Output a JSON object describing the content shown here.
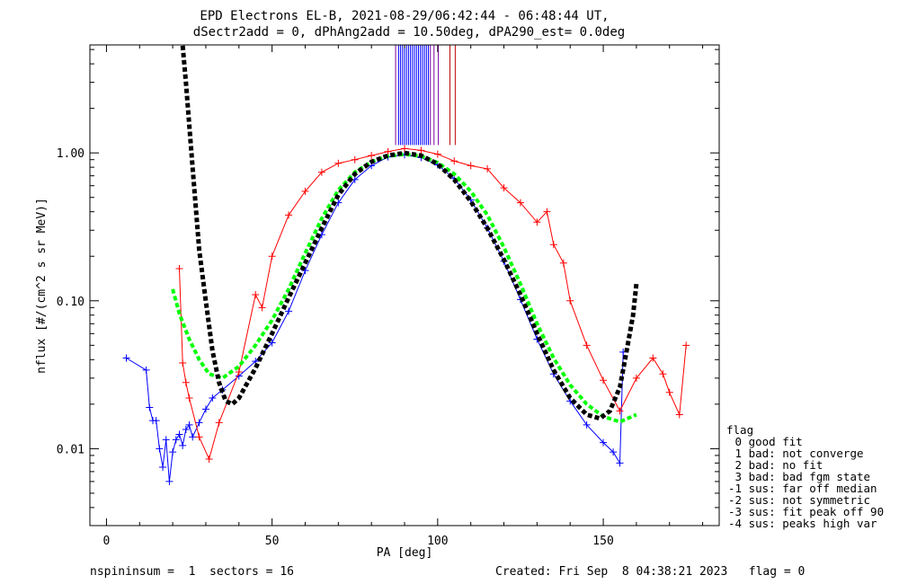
{
  "header": {
    "title_line1": "EPD Electrons EL-B, 2021-08-29/06:42:44 - 06:48:44 UT,",
    "title_line2": "dSectr2add = 0, dPhAng2add = 10.50deg, dPA290_est=   0.0deg"
  },
  "legend": {
    "heading": "flag",
    "items": [
      " 0 good fit",
      " 1 bad: not converge",
      " 2 bad: no fit",
      " 3 bad: bad fgm state",
      "-1 sus: far off median",
      "-2 sus: not symmetric",
      "-3 sus: fit peak off 90",
      "-4 sus: peaks high var"
    ]
  },
  "footer": {
    "left": "nspininsum =  1  sectors = 16",
    "right": "Created: Fri Sep  8 04:38:21 2023   flag = 0"
  },
  "colors": {
    "blue": "#0000ff",
    "red": "#ff0000",
    "green": "#00ff00",
    "black": "#000000",
    "purple": "#8000a0",
    "darkred": "#c00000"
  },
  "chart_data": {
    "type": "line",
    "xlabel": "PA [deg]",
    "ylabel": "nflux [#/(cm^2 s sr MeV)]",
    "xlim": [
      -5,
      185
    ],
    "ylim_log10": [
      -2.52,
      0.73
    ],
    "log_y": true,
    "x_ticks": [
      {
        "value": 0,
        "label": "0"
      },
      {
        "value": 50,
        "label": "50"
      },
      {
        "value": 100,
        "label": "100"
      },
      {
        "value": 150,
        "label": "150"
      }
    ],
    "y_ticks": [
      {
        "value": 0.01,
        "label": "0.01"
      },
      {
        "value": 0.1,
        "label": "0.10"
      },
      {
        "value": 1.0,
        "label": "1.00"
      }
    ],
    "series": [
      {
        "color": "blue",
        "style": "line+cross",
        "points": [
          [
            6,
            0.041
          ],
          [
            12,
            0.034
          ],
          [
            13,
            0.019
          ],
          [
            14,
            0.0155
          ],
          [
            15,
            0.0155
          ],
          [
            16,
            0.01
          ],
          [
            17,
            0.0075
          ],
          [
            18,
            0.0115
          ],
          [
            19,
            0.006
          ],
          [
            20,
            0.0095
          ],
          [
            21,
            0.0115
          ],
          [
            22,
            0.0125
          ],
          [
            23,
            0.0105
          ],
          [
            24,
            0.0135
          ],
          [
            25,
            0.0145
          ],
          [
            26,
            0.012
          ],
          [
            28,
            0.015
          ],
          [
            30,
            0.0185
          ],
          [
            32,
            0.022
          ],
          [
            35,
            0.025
          ],
          [
            40,
            0.031
          ],
          [
            45,
            0.039
          ],
          [
            50,
            0.052
          ],
          [
            55,
            0.085
          ],
          [
            60,
            0.16
          ],
          [
            65,
            0.28
          ],
          [
            70,
            0.46
          ],
          [
            75,
            0.66
          ],
          [
            80,
            0.82
          ],
          [
            85,
            0.94
          ],
          [
            90,
            0.97
          ],
          [
            95,
            0.93
          ],
          [
            100,
            0.83
          ],
          [
            105,
            0.67
          ],
          [
            110,
            0.48
          ],
          [
            115,
            0.31
          ],
          [
            120,
            0.185
          ],
          [
            125,
            0.102
          ],
          [
            130,
            0.055
          ],
          [
            135,
            0.032
          ],
          [
            140,
            0.021
          ],
          [
            145,
            0.0145
          ],
          [
            150,
            0.011
          ],
          [
            153,
            0.0095
          ],
          [
            155,
            0.008
          ],
          [
            156,
            0.045
          ]
        ]
      },
      {
        "color": "red",
        "style": "line+cross",
        "points": [
          [
            22,
            0.165
          ],
          [
            23,
            0.038
          ],
          [
            24,
            0.028
          ],
          [
            25,
            0.022
          ],
          [
            28,
            0.012
          ],
          [
            31,
            0.0085
          ],
          [
            34,
            0.015
          ],
          [
            40,
            0.033
          ],
          [
            45,
            0.11
          ],
          [
            47,
            0.09
          ],
          [
            50,
            0.2
          ],
          [
            55,
            0.38
          ],
          [
            60,
            0.55
          ],
          [
            65,
            0.74
          ],
          [
            70,
            0.85
          ],
          [
            75,
            0.9
          ],
          [
            80,
            0.96
          ],
          [
            85,
            1.02
          ],
          [
            90,
            1.07
          ],
          [
            95,
            1.04
          ],
          [
            100,
            0.98
          ],
          [
            105,
            0.88
          ],
          [
            110,
            0.82
          ],
          [
            115,
            0.78
          ],
          [
            120,
            0.58
          ],
          [
            125,
            0.46
          ],
          [
            130,
            0.34
          ],
          [
            133,
            0.4
          ],
          [
            135,
            0.24
          ],
          [
            138,
            0.18
          ],
          [
            140,
            0.1
          ],
          [
            145,
            0.05
          ],
          [
            150,
            0.029
          ],
          [
            155,
            0.018
          ],
          [
            160,
            0.03
          ],
          [
            165,
            0.041
          ],
          [
            168,
            0.032
          ],
          [
            170,
            0.024
          ],
          [
            173,
            0.017
          ],
          [
            175,
            0.05
          ]
        ]
      },
      {
        "color": "green",
        "style": "dashed",
        "points": [
          [
            20,
            0.12
          ],
          [
            22,
            0.082
          ],
          [
            25,
            0.055
          ],
          [
            28,
            0.04
          ],
          [
            31,
            0.032
          ],
          [
            35,
            0.03
          ],
          [
            40,
            0.036
          ],
          [
            45,
            0.05
          ],
          [
            50,
            0.074
          ],
          [
            55,
            0.12
          ],
          [
            60,
            0.21
          ],
          [
            65,
            0.36
          ],
          [
            70,
            0.56
          ],
          [
            75,
            0.74
          ],
          [
            80,
            0.87
          ],
          [
            85,
            0.95
          ],
          [
            90,
            0.98
          ],
          [
            95,
            0.95
          ],
          [
            100,
            0.86
          ],
          [
            105,
            0.72
          ],
          [
            110,
            0.55
          ],
          [
            115,
            0.38
          ],
          [
            120,
            0.23
          ],
          [
            125,
            0.13
          ],
          [
            130,
            0.07
          ],
          [
            135,
            0.041
          ],
          [
            140,
            0.027
          ],
          [
            145,
            0.02
          ],
          [
            150,
            0.0165
          ],
          [
            155,
            0.0152
          ],
          [
            160,
            0.017
          ]
        ]
      },
      {
        "color": "black",
        "style": "dashed-thick",
        "points": [
          [
            23,
            5.3
          ],
          [
            24,
            3.0
          ],
          [
            25,
            1.55
          ],
          [
            26,
            0.8
          ],
          [
            27,
            0.42
          ],
          [
            28,
            0.22
          ],
          [
            30,
            0.1
          ],
          [
            32,
            0.046
          ],
          [
            34,
            0.028
          ],
          [
            36,
            0.021
          ],
          [
            38,
            0.02
          ],
          [
            40,
            0.022
          ],
          [
            45,
            0.035
          ],
          [
            50,
            0.06
          ],
          [
            55,
            0.105
          ],
          [
            60,
            0.18
          ],
          [
            65,
            0.31
          ],
          [
            70,
            0.52
          ],
          [
            75,
            0.72
          ],
          [
            80,
            0.87
          ],
          [
            85,
            0.96
          ],
          [
            90,
            1.0
          ],
          [
            95,
            0.96
          ],
          [
            100,
            0.84
          ],
          [
            105,
            0.66
          ],
          [
            110,
            0.47
          ],
          [
            115,
            0.31
          ],
          [
            120,
            0.19
          ],
          [
            125,
            0.11
          ],
          [
            130,
            0.06
          ],
          [
            135,
            0.034
          ],
          [
            140,
            0.022
          ],
          [
            145,
            0.017
          ],
          [
            149,
            0.016
          ],
          [
            152,
            0.018
          ],
          [
            155,
            0.026
          ],
          [
            157,
            0.045
          ],
          [
            159,
            0.08
          ],
          [
            160,
            0.13
          ]
        ]
      }
    ],
    "vertical_markers": [
      {
        "x": 87.3,
        "color": "purple"
      },
      {
        "x": 88.2,
        "color": "blue"
      },
      {
        "x": 88.8,
        "color": "blue"
      },
      {
        "x": 89.4,
        "color": "blue"
      },
      {
        "x": 90.0,
        "color": "blue"
      },
      {
        "x": 90.6,
        "color": "blue"
      },
      {
        "x": 91.2,
        "color": "blue"
      },
      {
        "x": 91.8,
        "color": "blue"
      },
      {
        "x": 92.4,
        "color": "blue"
      },
      {
        "x": 93.0,
        "color": "blue"
      },
      {
        "x": 93.6,
        "color": "blue"
      },
      {
        "x": 94.2,
        "color": "blue"
      },
      {
        "x": 94.8,
        "color": "blue"
      },
      {
        "x": 95.4,
        "color": "blue"
      },
      {
        "x": 96.0,
        "color": "blue"
      },
      {
        "x": 96.6,
        "color": "blue"
      },
      {
        "x": 97.2,
        "color": "blue"
      },
      {
        "x": 97.8,
        "color": "purple"
      },
      {
        "x": 98.9,
        "color": "purple"
      },
      {
        "x": 100.2,
        "color": "purple"
      },
      {
        "x": 103.7,
        "color": "darkred"
      },
      {
        "x": 105.3,
        "color": "darkred"
      }
    ],
    "vertical_marker_range": [
      1.13,
      5.4
    ]
  }
}
